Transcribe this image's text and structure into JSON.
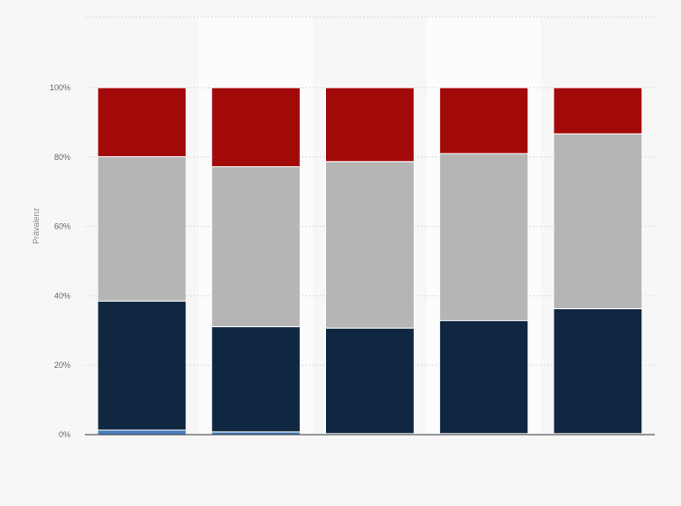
{
  "chart_data": {
    "type": "bar",
    "stacked": true,
    "xlabel": "",
    "ylabel": "Prävalenz",
    "ylim": [
      0,
      100
    ],
    "yticks": [
      0,
      20,
      40,
      60,
      80,
      100
    ],
    "ytick_labels": [
      "0%",
      "20%",
      "40%",
      "60%",
      "80%",
      "100%"
    ],
    "categories": [
      "",
      "",
      "",
      "",
      ""
    ],
    "series": [
      {
        "color": "#4a7ebf",
        "values": [
          1.3,
          0.8,
          0.3,
          0.3,
          0.3
        ]
      },
      {
        "color": "#0f2740",
        "values": [
          37.2,
          30.3,
          30.4,
          32.6,
          36.0
        ]
      },
      {
        "color": "#b5b5b5",
        "values": [
          41.6,
          46.1,
          48.0,
          48.1,
          50.4
        ]
      },
      {
        "color": "#a20a0a",
        "values": [
          19.9,
          22.8,
          21.3,
          19.0,
          13.3
        ]
      }
    ],
    "grid": true,
    "alternating_column_shading": true
  }
}
